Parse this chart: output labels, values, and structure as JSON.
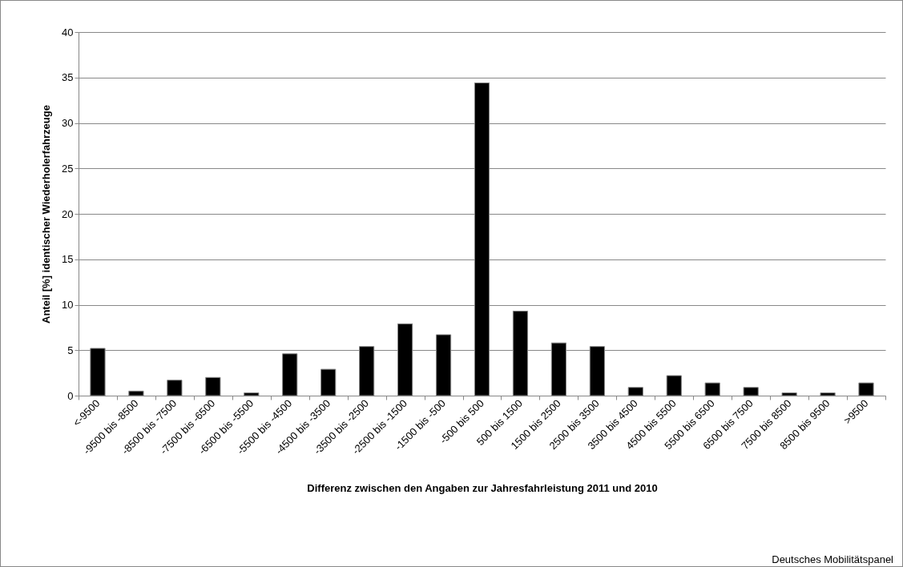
{
  "chart_data": {
    "type": "bar",
    "xlabel": "Differenz zwischen den Angaben zur Jahresfahrleistung 2011 und 2010",
    "ylabel": "Anteil [%] identischer Wiederholerfahrzeuge",
    "categories": [
      "<-9500",
      "-9500 bis -8500",
      "-8500 bis -7500",
      "-7500 bis -6500",
      "-6500 bis -5500",
      "-5500 bis -4500",
      "-4500 bis -3500",
      "-3500 bis -2500",
      "-2500 bis -1500",
      "-1500 bis -500",
      "-500 bis 500",
      "500 bis 1500",
      "1500 bis 2500",
      "2500 bis 3500",
      "3500 bis 4500",
      "4500 bis 5500",
      "5500 bis 6500",
      "6500 bis 7500",
      "7500 bis 8500",
      "8500 bis 9500",
      ">9500"
    ],
    "values": [
      5.2,
      0.5,
      1.7,
      2.0,
      0.3,
      4.6,
      2.9,
      5.4,
      7.9,
      6.7,
      34.4,
      9.3,
      5.8,
      5.4,
      0.9,
      2.2,
      1.4,
      0.9,
      0.3,
      0.3,
      1.4
    ],
    "color": "#000000",
    "ylim": [
      0,
      40
    ],
    "yticks": [
      0,
      5,
      10,
      15,
      20,
      25,
      30,
      35,
      40
    ],
    "grid": "y",
    "annotations": [
      "Deutsches Mobilitätspanel"
    ]
  }
}
